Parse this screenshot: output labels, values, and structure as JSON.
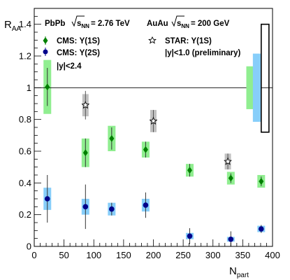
{
  "chart_data": {
    "type": "scatter",
    "xlabel": "N",
    "xlabel_sub": "part",
    "ylabel": "R",
    "ylabel_sub": "AA",
    "xlim": [
      0,
      400
    ],
    "ylim": [
      0,
      1.5
    ],
    "x_ticks": [
      0,
      50,
      100,
      150,
      200,
      250,
      300,
      350,
      400
    ],
    "y_ticks": [
      0,
      0.2,
      0.4,
      0.6,
      0.8,
      1,
      1.2,
      1.4
    ],
    "y_tick_labels": [
      "0",
      "0.2",
      "0.4",
      "0.6",
      "0.8",
      "1",
      "1.2",
      "1.4"
    ],
    "reference_line": 1,
    "header": {
      "system1": "PbPb",
      "energy1_sym": "s",
      "energy1_sub": "NN",
      "energy1_value": "= 2.76 TeV",
      "system2": "AuAu",
      "energy2_sym": "s",
      "energy2_sub": "NN",
      "energy2_value": "= 200 GeV"
    },
    "series": [
      {
        "name": "CMS: Υ(1S)",
        "marker": "diamond",
        "marker_color": "#008000",
        "sys_color": "#90ee90",
        "note": "|y|<2.4",
        "points": [
          {
            "x": 22,
            "y": 1.005,
            "stat": 0.12,
            "sys": 0.17
          },
          {
            "x": 86,
            "y": 0.59,
            "stat": 0.09,
            "sys": 0.09
          },
          {
            "x": 130,
            "y": 0.68,
            "stat": 0.07,
            "sys": 0.08
          },
          {
            "x": 187,
            "y": 0.61,
            "stat": 0.05,
            "sys": 0.05
          },
          {
            "x": 261,
            "y": 0.48,
            "stat": 0.04,
            "sys": 0.04
          },
          {
            "x": 330,
            "y": 0.43,
            "stat": 0.03,
            "sys": 0.04
          },
          {
            "x": 381,
            "y": 0.41,
            "stat": 0.03,
            "sys": 0.04
          }
        ]
      },
      {
        "name": "CMS: Υ(2S)",
        "marker": "circle",
        "marker_color": "#00008b",
        "sys_color": "#87cefa",
        "points": [
          {
            "x": 22,
            "y": 0.3,
            "stat": 0.15,
            "sys": 0.07
          },
          {
            "x": 86,
            "y": 0.25,
            "stat": 0.14,
            "sys": 0.05
          },
          {
            "x": 130,
            "y": 0.235,
            "stat": 0.04,
            "sys": 0.04
          },
          {
            "x": 187,
            "y": 0.26,
            "stat": 0.08,
            "sys": 0.04
          },
          {
            "x": 261,
            "y": 0.065,
            "stat": 0.05,
            "sys": 0.02
          },
          {
            "x": 330,
            "y": 0.045,
            "stat": 0.05,
            "sys": 0.015
          },
          {
            "x": 381,
            "y": 0.11,
            "stat": 0.025,
            "sys": 0.02
          }
        ]
      },
      {
        "name": "STAR: Υ(1S)",
        "marker": "open-star",
        "marker_color": "#000000",
        "sys_color": "#c0c0c0",
        "note": "|y|<1.0 (preliminary)",
        "points": [
          {
            "x": 86,
            "y": 0.89,
            "stat": 0.09,
            "sys": 0.07
          },
          {
            "x": 200,
            "y": 0.79,
            "stat": 0.07,
            "sys": 0.07
          },
          {
            "x": 325,
            "y": 0.535,
            "stat": 0.05,
            "sys": 0.05
          }
        ]
      }
    ],
    "global_uncertainty_boxes": [
      {
        "label": "CMS: Υ(1S) global",
        "x_from": 356,
        "x_to": 368,
        "y_low": 0.865,
        "y_high": 1.135,
        "style": "filled",
        "color": "#90ee90"
      },
      {
        "label": "CMS: Υ(2S) global",
        "x_from": 367,
        "x_to": 381,
        "y_low": 0.785,
        "y_high": 1.215,
        "style": "filled",
        "color": "#87cefa"
      },
      {
        "label": "STAR global",
        "x_from": 381,
        "x_to": 394,
        "y_low": 0.72,
        "y_high": 1.4,
        "style": "outline",
        "color": "#000000"
      }
    ]
  }
}
